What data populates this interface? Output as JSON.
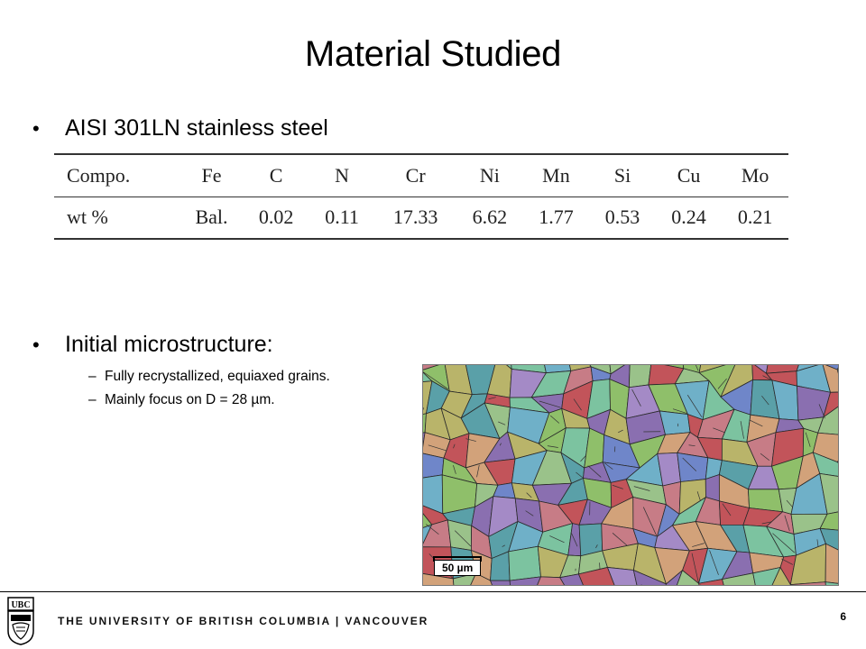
{
  "slide": {
    "title": "Material Studied",
    "bullets": [
      {
        "text": "AISI 301LN stainless steel"
      },
      {
        "text": "Initial microstructure:"
      }
    ],
    "bullet_glyph": "•",
    "sub_glyph": "–",
    "sub_bullets": [
      "Fully recrystallized, equiaxed grains.",
      "Mainly focus on D = 28 µm."
    ]
  },
  "composition_table": {
    "header": [
      "Compo.",
      "Fe",
      "C",
      "N",
      "Cr",
      "Ni",
      "Mn",
      "Si",
      "Cu",
      "Mo"
    ],
    "values": [
      "wt %",
      "Bal.",
      "0.02",
      "0.11",
      "17.33",
      "6.62",
      "1.77",
      "0.53",
      "0.24",
      "0.21"
    ]
  },
  "micrograph": {
    "scale_bar": "50 µm",
    "grain_colors": [
      "#c2545a",
      "#5aa0a8",
      "#8fbf6a",
      "#a48ac6",
      "#6f86c9",
      "#d2a27a",
      "#7cc3a0",
      "#b9b46a",
      "#8a6fb0",
      "#6fb0c8",
      "#c77c86",
      "#9ac28a"
    ]
  },
  "footer": {
    "university": "THE UNIVERSITY OF BRITISH COLUMBIA | VANCOUVER",
    "logo_text": "UBC",
    "page_number": "6"
  }
}
